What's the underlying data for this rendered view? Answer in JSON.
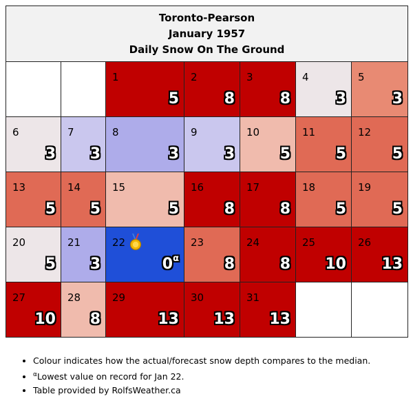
{
  "title": {
    "station": "Toronto-Pearson",
    "month": "January 1957",
    "subtitle": "Daily Snow On The Ground"
  },
  "colors": {
    "white": "#ffffff",
    "near_median": "#ede6e8",
    "light_blue": "#cac7ee",
    "medium_blue": "#aeacea",
    "record_blue": "#1f4fd8",
    "light_red": "#f0bbad",
    "medium_red": "#e88a73",
    "red": "#e06a55",
    "dark_red": "#c00000"
  },
  "calendar": {
    "leading_blank_days": 2,
    "days": [
      {
        "day": "1",
        "snow": "5",
        "color": "#c00000"
      },
      {
        "day": "2",
        "snow": "8",
        "color": "#c00000"
      },
      {
        "day": "3",
        "snow": "8",
        "color": "#c00000"
      },
      {
        "day": "4",
        "snow": "3",
        "color": "#ede6e8"
      },
      {
        "day": "5",
        "snow": "3",
        "color": "#e88a73"
      },
      {
        "day": "6",
        "snow": "3",
        "color": "#ede6e8"
      },
      {
        "day": "7",
        "snow": "3",
        "color": "#cac7ee"
      },
      {
        "day": "8",
        "snow": "3",
        "color": "#aeacea"
      },
      {
        "day": "9",
        "snow": "3",
        "color": "#cac7ee"
      },
      {
        "day": "10",
        "snow": "5",
        "color": "#f0bbad"
      },
      {
        "day": "11",
        "snow": "5",
        "color": "#e06a55"
      },
      {
        "day": "12",
        "snow": "5",
        "color": "#e06a55"
      },
      {
        "day": "13",
        "snow": "5",
        "color": "#e06a55"
      },
      {
        "day": "14",
        "snow": "5",
        "color": "#e06a55"
      },
      {
        "day": "15",
        "snow": "5",
        "color": "#f0bbad"
      },
      {
        "day": "16",
        "snow": "8",
        "color": "#c00000"
      },
      {
        "day": "17",
        "snow": "8",
        "color": "#c00000"
      },
      {
        "day": "18",
        "snow": "5",
        "color": "#e06a55"
      },
      {
        "day": "19",
        "snow": "5",
        "color": "#e06a55"
      },
      {
        "day": "20",
        "snow": "5",
        "color": "#ede6e8"
      },
      {
        "day": "21",
        "snow": "3",
        "color": "#aeacea"
      },
      {
        "day": "22",
        "snow": "0",
        "color": "#1f4fd8",
        "marker": "α",
        "medal": true
      },
      {
        "day": "23",
        "snow": "8",
        "color": "#e06a55"
      },
      {
        "day": "24",
        "snow": "8",
        "color": "#c00000"
      },
      {
        "day": "25",
        "snow": "10",
        "color": "#c00000"
      },
      {
        "day": "26",
        "snow": "13",
        "color": "#c00000"
      },
      {
        "day": "27",
        "snow": "10",
        "color": "#c00000"
      },
      {
        "day": "28",
        "snow": "8",
        "color": "#f0bbad"
      },
      {
        "day": "29",
        "snow": "13",
        "color": "#c00000"
      },
      {
        "day": "30",
        "snow": "13",
        "color": "#c00000"
      },
      {
        "day": "31",
        "snow": "13",
        "color": "#c00000"
      }
    ]
  },
  "notes": {
    "colour_note": "Colour indicates how the actual/forecast snow depth compares to the median.",
    "record_marker": "α",
    "record_note": "Lowest value on record for Jan 22.",
    "credit": "Table provided by RolfsWeather.ca"
  },
  "icons": {
    "medal": "gold-medal-icon"
  }
}
